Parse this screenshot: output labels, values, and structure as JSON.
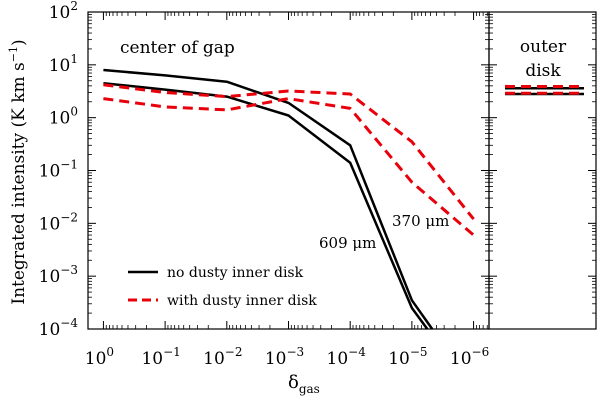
{
  "chart_data": {
    "type": "line",
    "ylabel_main": "Integrated intensity (K km s",
    "ylabel_sup": "−1",
    "ylabel_close": ")",
    "xlabel_main": "δ",
    "xlabel_sub": "gas",
    "x_exponents": [
      0,
      -1,
      -2,
      -3,
      -4,
      -5,
      -6
    ],
    "y_exponents": [
      2,
      1,
      0,
      -1,
      -2,
      -3,
      -4
    ],
    "tick_base": "10",
    "xlim_log10": [
      0.25,
      -6.25
    ],
    "ylim_log10": [
      -4,
      2
    ],
    "annotations": {
      "gap": "center of gap",
      "outer_line1": "outer",
      "outer_line2": "disk",
      "lbl609": "609 μm",
      "lbl370": "370 μm"
    },
    "legend": [
      {
        "name": "no dusty inner disk",
        "style": "solid",
        "color": "#000000"
      },
      {
        "name": "with dusty inner disk",
        "style": "dashed",
        "color": "#e8000b"
      }
    ],
    "series": [
      {
        "name": "no dusty inner disk 370 μm",
        "style": "solid",
        "color": "#000000",
        "x_log10": [
          0,
          -1,
          -2,
          -3,
          -4,
          -5,
          -5.33
        ],
        "y": [
          8.0,
          6.3,
          4.8,
          1.9,
          0.3,
          0.00035,
          0.0001
        ]
      },
      {
        "name": "no dusty inner disk 609 μm",
        "style": "solid",
        "color": "#000000",
        "x_log10": [
          0,
          -1,
          -2,
          -3,
          -4,
          -5,
          -5.25
        ],
        "y": [
          4.5,
          3.4,
          2.5,
          1.1,
          0.14,
          0.00025,
          0.0001
        ]
      },
      {
        "name": "with dusty inner disk 370 μm",
        "style": "dashed",
        "color": "#e8000b",
        "x_log10": [
          0,
          -1,
          -2,
          -3,
          -4,
          -5,
          -6
        ],
        "y": [
          4.2,
          3.0,
          2.5,
          3.2,
          2.8,
          0.35,
          0.012
        ]
      },
      {
        "name": "with dusty inner disk 609 μm",
        "style": "dashed",
        "color": "#e8000b",
        "x_log10": [
          0,
          -1,
          -2,
          -3,
          -4,
          -5,
          -6
        ],
        "y": [
          2.3,
          1.6,
          1.4,
          2.3,
          1.5,
          0.06,
          0.006
        ]
      }
    ],
    "outer_disk": [
      {
        "style": "solid",
        "color": "#000000",
        "y": 3.6
      },
      {
        "style": "solid",
        "color": "#000000",
        "y": 2.8
      },
      {
        "style": "dashed",
        "color": "#e8000b",
        "y": 3.9
      },
      {
        "style": "dashed",
        "color": "#e8000b",
        "y": 2.9
      }
    ]
  }
}
